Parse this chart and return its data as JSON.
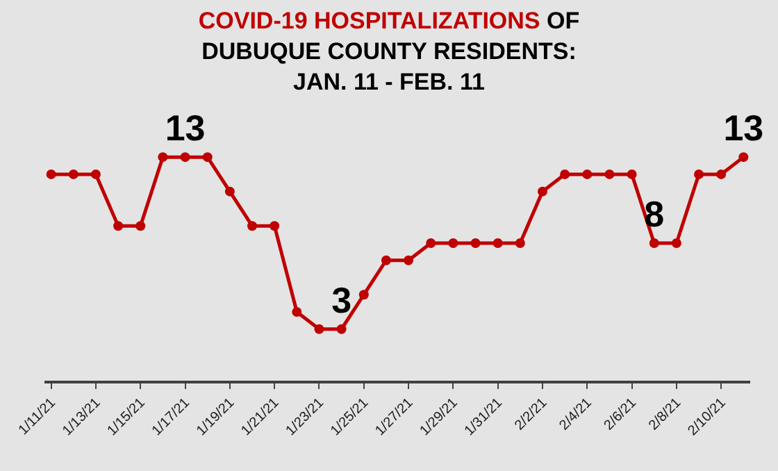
{
  "chart_data": {
    "type": "line",
    "title": "COVID-19 HOSPITALIZATIONS OF DUBUQUE COUNTY RESIDENTS: JAN. 11 - FEB. 11",
    "categories": [
      "1/11/21",
      null,
      "1/13/21",
      null,
      "1/15/21",
      null,
      "1/17/21",
      null,
      "1/19/21",
      null,
      "1/21/21",
      null,
      "1/23/21",
      null,
      "1/25/21",
      null,
      "1/27/21",
      null,
      "1/29/21",
      null,
      "1/31/21",
      null,
      "2/2/21",
      null,
      "2/4/21",
      null,
      "2/6/21",
      null,
      "2/8/21",
      null,
      "2/10/21",
      null
    ],
    "series": [
      {
        "color": "#c00000",
        "values": [
          12,
          12,
          12,
          9,
          9,
          13,
          13,
          13,
          11,
          9,
          9,
          4,
          3,
          3,
          5,
          7,
          7,
          8,
          8,
          8,
          8,
          8,
          11,
          12,
          12,
          12,
          12,
          8,
          8,
          12,
          12,
          13
        ],
        "value_labels": [
          null,
          null,
          null,
          null,
          null,
          null,
          "13",
          null,
          null,
          null,
          null,
          null,
          null,
          "3",
          null,
          null,
          null,
          null,
          null,
          null,
          null,
          null,
          null,
          null,
          null,
          null,
          null,
          "8",
          null,
          null,
          null,
          "13"
        ]
      }
    ],
    "tick_labels": "x",
    "grid": false,
    "legend": false,
    "marker": "circle",
    "line_style": "solid"
  }
}
